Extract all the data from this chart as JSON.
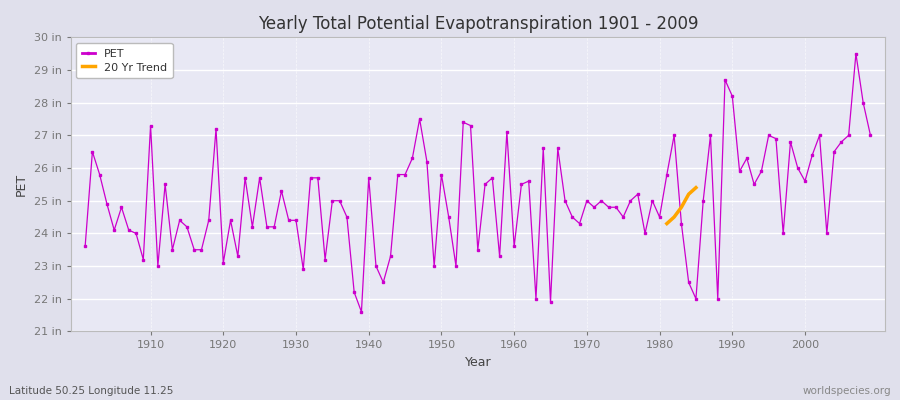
{
  "title": "Yearly Total Potential Evapotranspiration 1901 - 2009",
  "xlabel": "Year",
  "ylabel": "PET",
  "subtitle_left": "Latitude 50.25 Longitude 11.25",
  "subtitle_right": "worldspecies.org",
  "pet_color": "#CC00CC",
  "trend_color": "#FFA500",
  "bg_color": "#E0E0EC",
  "plot_bg_color": "#E8E8F4",
  "ylim": [
    21,
    30
  ],
  "yticks": [
    21,
    22,
    23,
    24,
    25,
    26,
    27,
    28,
    29,
    30
  ],
  "ytick_labels": [
    "21 in",
    "22 in",
    "23 in",
    "24 in",
    "25 in",
    "26 in",
    "27 in",
    "28 in",
    "29 in",
    "30 in"
  ],
  "years": [
    1901,
    1902,
    1903,
    1904,
    1905,
    1906,
    1907,
    1908,
    1909,
    1910,
    1911,
    1912,
    1913,
    1914,
    1915,
    1916,
    1917,
    1918,
    1919,
    1920,
    1921,
    1922,
    1923,
    1924,
    1925,
    1926,
    1927,
    1928,
    1929,
    1930,
    1931,
    1932,
    1933,
    1934,
    1935,
    1936,
    1937,
    1938,
    1939,
    1940,
    1941,
    1942,
    1943,
    1944,
    1945,
    1946,
    1947,
    1948,
    1949,
    1950,
    1951,
    1952,
    1953,
    1954,
    1955,
    1956,
    1957,
    1958,
    1959,
    1960,
    1961,
    1962,
    1963,
    1964,
    1965,
    1966,
    1967,
    1968,
    1969,
    1970,
    1971,
    1972,
    1973,
    1974,
    1975,
    1976,
    1977,
    1978,
    1979,
    1980,
    1981,
    1982,
    1983,
    1984,
    1985,
    1986,
    1987,
    1988,
    1989,
    1990,
    1991,
    1992,
    1993,
    1994,
    1995,
    1996,
    1997,
    1998,
    1999,
    2000,
    2001,
    2002,
    2003,
    2004,
    2005,
    2006,
    2007,
    2008,
    2009
  ],
  "pet_values": [
    23.6,
    26.5,
    25.8,
    24.9,
    24.1,
    24.8,
    24.1,
    24.0,
    23.2,
    27.3,
    23.0,
    25.5,
    23.5,
    24.4,
    24.2,
    23.5,
    23.5,
    24.4,
    27.2,
    23.1,
    24.4,
    23.3,
    25.7,
    24.2,
    25.7,
    24.2,
    24.2,
    25.3,
    24.4,
    24.4,
    22.9,
    25.7,
    25.7,
    23.2,
    25.0,
    25.0,
    24.5,
    22.2,
    21.6,
    25.7,
    23.0,
    22.5,
    23.3,
    25.8,
    25.8,
    26.3,
    27.5,
    26.2,
    23.0,
    25.8,
    24.5,
    23.0,
    27.4,
    27.3,
    23.5,
    25.5,
    25.7,
    23.3,
    27.1,
    23.6,
    25.5,
    25.6,
    22.0,
    26.6,
    21.9,
    26.6,
    25.0,
    24.5,
    24.3,
    25.0,
    24.8,
    25.0,
    24.8,
    24.8,
    24.5,
    25.0,
    25.2,
    24.0,
    25.0,
    24.5,
    25.8,
    27.0,
    24.3,
    22.5,
    22.0,
    25.0,
    27.0,
    22.0,
    28.7,
    28.2,
    25.9,
    26.3,
    25.5,
    25.9,
    27.0,
    26.9,
    24.0,
    26.8,
    26.0,
    25.6,
    26.4,
    27.0,
    24.0,
    26.5,
    26.8,
    27.0,
    29.5,
    28.0,
    27.0
  ],
  "trend_years": [
    1981,
    1982,
    1983,
    1984,
    1985
  ],
  "trend_values": [
    24.3,
    24.5,
    24.8,
    25.2,
    25.4
  ],
  "xticks": [
    1910,
    1920,
    1930,
    1940,
    1950,
    1960,
    1970,
    1980,
    1990,
    2000
  ],
  "xlim": [
    1899,
    2011
  ]
}
